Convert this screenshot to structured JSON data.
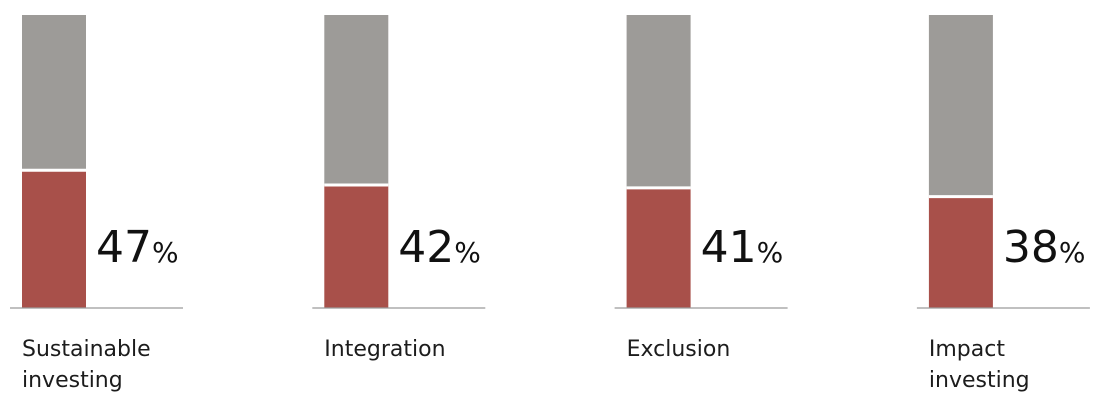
{
  "chart_data": {
    "type": "bar",
    "stacked": true,
    "categories": [
      "Sustainable investing",
      "Integration",
      "Exclusion",
      "Impact investing"
    ],
    "series": [
      {
        "color": "#a8504a",
        "values": [
          47,
          42,
          41,
          38
        ],
        "value_labels": [
          "47%",
          "42%",
          "41%",
          "38%"
        ]
      },
      {
        "color": "#9d9b98",
        "values": [
          53,
          58,
          59,
          62
        ]
      }
    ],
    "ylim": [
      0,
      100
    ]
  }
}
